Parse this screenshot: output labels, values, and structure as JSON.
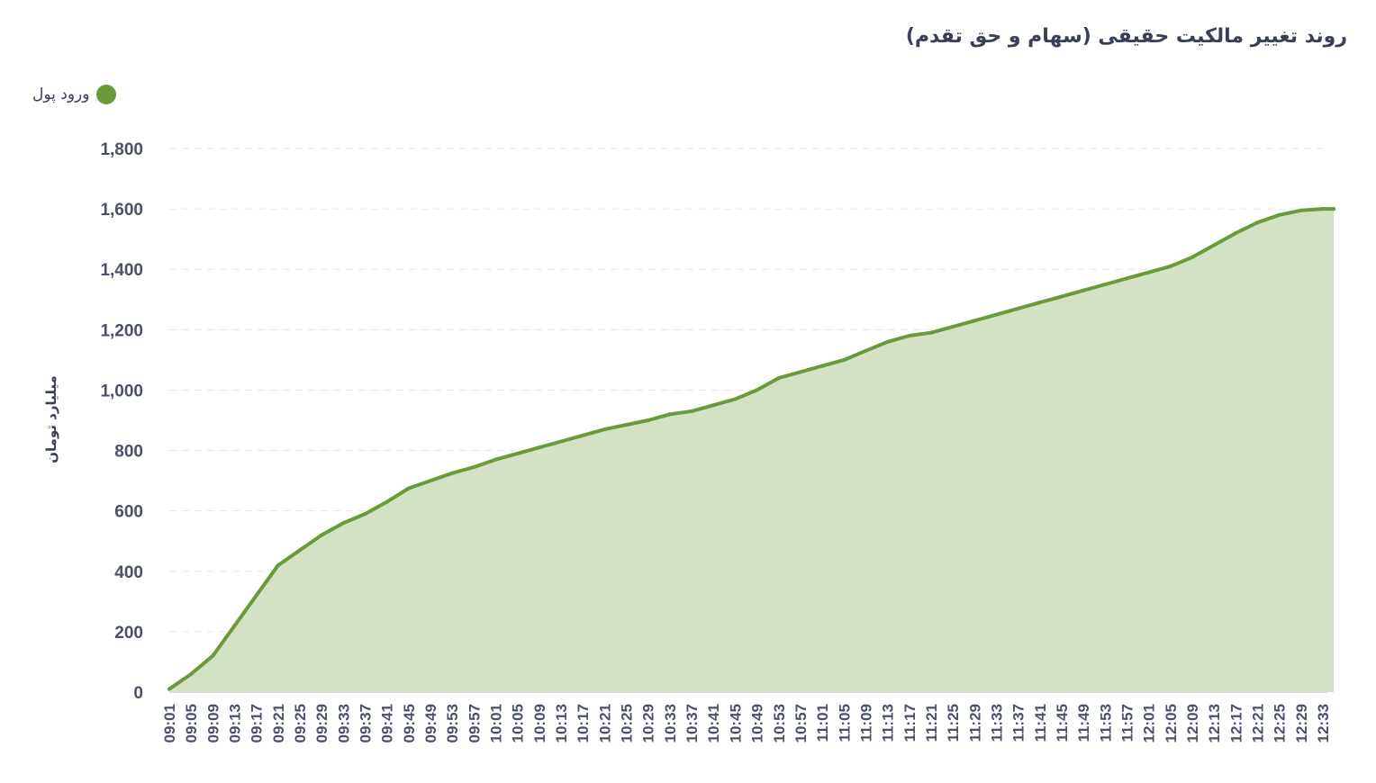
{
  "chart_data": {
    "type": "area",
    "title": "روند تغییر مالکیت حقیقی (سهام و حق تقدم)",
    "ylabel": "میلیارد تومان",
    "xlabel": "",
    "ylim": [
      0,
      1800
    ],
    "y_ticks": [
      "0",
      "200",
      "400",
      "600",
      "800",
      "1,000",
      "1,200",
      "1,400",
      "1,600",
      "1,800"
    ],
    "x_ticks": [
      "09:01",
      "09:05",
      "09:09",
      "09:13",
      "09:17",
      "09:21",
      "09:25",
      "09:29",
      "09:33",
      "09:37",
      "09:41",
      "09:45",
      "09:49",
      "09:53",
      "09:57",
      "10:01",
      "10:05",
      "10:09",
      "10:13",
      "10:17",
      "10:21",
      "10:25",
      "10:29",
      "10:33",
      "10:37",
      "10:41",
      "10:45",
      "10:49",
      "10:53",
      "10:57",
      "11:01",
      "11:05",
      "11:09",
      "11:13",
      "11:17",
      "11:21",
      "11:25",
      "11:29",
      "11:33",
      "11:37",
      "11:41",
      "11:45",
      "11:49",
      "11:53",
      "11:57",
      "12:01",
      "12:05",
      "12:09",
      "12:13",
      "12:17",
      "12:21",
      "12:25",
      "12:29",
      "12:33"
    ],
    "grid": true,
    "legend_position": "top-left",
    "series": [
      {
        "name": "ورود پول",
        "color": "#6a9a3a",
        "fill": "#d3e2c2",
        "x": [
          "09:01",
          "09:05",
          "09:09",
          "09:13",
          "09:17",
          "09:21",
          "09:25",
          "09:29",
          "09:33",
          "09:37",
          "09:41",
          "09:45",
          "09:49",
          "09:53",
          "09:57",
          "10:01",
          "10:05",
          "10:09",
          "10:13",
          "10:17",
          "10:21",
          "10:25",
          "10:29",
          "10:33",
          "10:37",
          "10:41",
          "10:45",
          "10:49",
          "10:53",
          "10:57",
          "11:01",
          "11:05",
          "11:09",
          "11:13",
          "11:17",
          "11:21",
          "11:25",
          "11:29",
          "11:33",
          "11:37",
          "11:41",
          "11:45",
          "11:49",
          "11:53",
          "11:57",
          "12:01",
          "12:05",
          "12:09",
          "12:13",
          "12:17",
          "12:21",
          "12:25",
          "12:29",
          "12:33",
          "12:35"
        ],
        "values": [
          10,
          60,
          120,
          220,
          320,
          420,
          470,
          520,
          560,
          590,
          630,
          675,
          700,
          725,
          745,
          770,
          790,
          810,
          830,
          850,
          870,
          885,
          900,
          920,
          930,
          950,
          970,
          1000,
          1040,
          1060,
          1080,
          1100,
          1130,
          1160,
          1180,
          1190,
          1210,
          1230,
          1250,
          1270,
          1290,
          1310,
          1330,
          1350,
          1370,
          1390,
          1410,
          1440,
          1480,
          1520,
          1555,
          1580,
          1595,
          1600,
          1600
        ]
      }
    ]
  }
}
